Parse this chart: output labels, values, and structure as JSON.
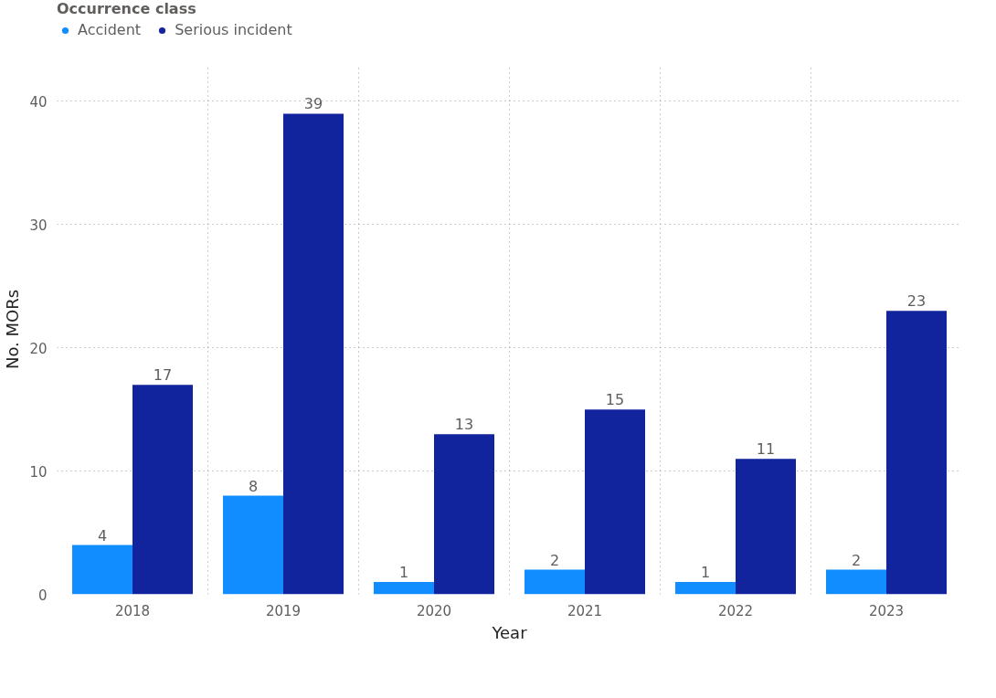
{
  "chart_data": {
    "type": "bar",
    "xlabel": "Year",
    "ylabel": "No. MORs",
    "legend_title": "Occurrence class",
    "categories": [
      "2018",
      "2019",
      "2020",
      "2021",
      "2022",
      "2023"
    ],
    "series": [
      {
        "name": "Accident",
        "color": "#118dff",
        "values": [
          4,
          8,
          1,
          2,
          1,
          2
        ]
      },
      {
        "name": "Serious incident",
        "color": "#12239e",
        "values": [
          17,
          39,
          13,
          15,
          11,
          23
        ]
      }
    ],
    "ylim": [
      0,
      43
    ],
    "yticks": [
      0,
      10,
      20,
      30,
      40
    ],
    "grid": true,
    "legend": "top left",
    "data_labels": true
  }
}
